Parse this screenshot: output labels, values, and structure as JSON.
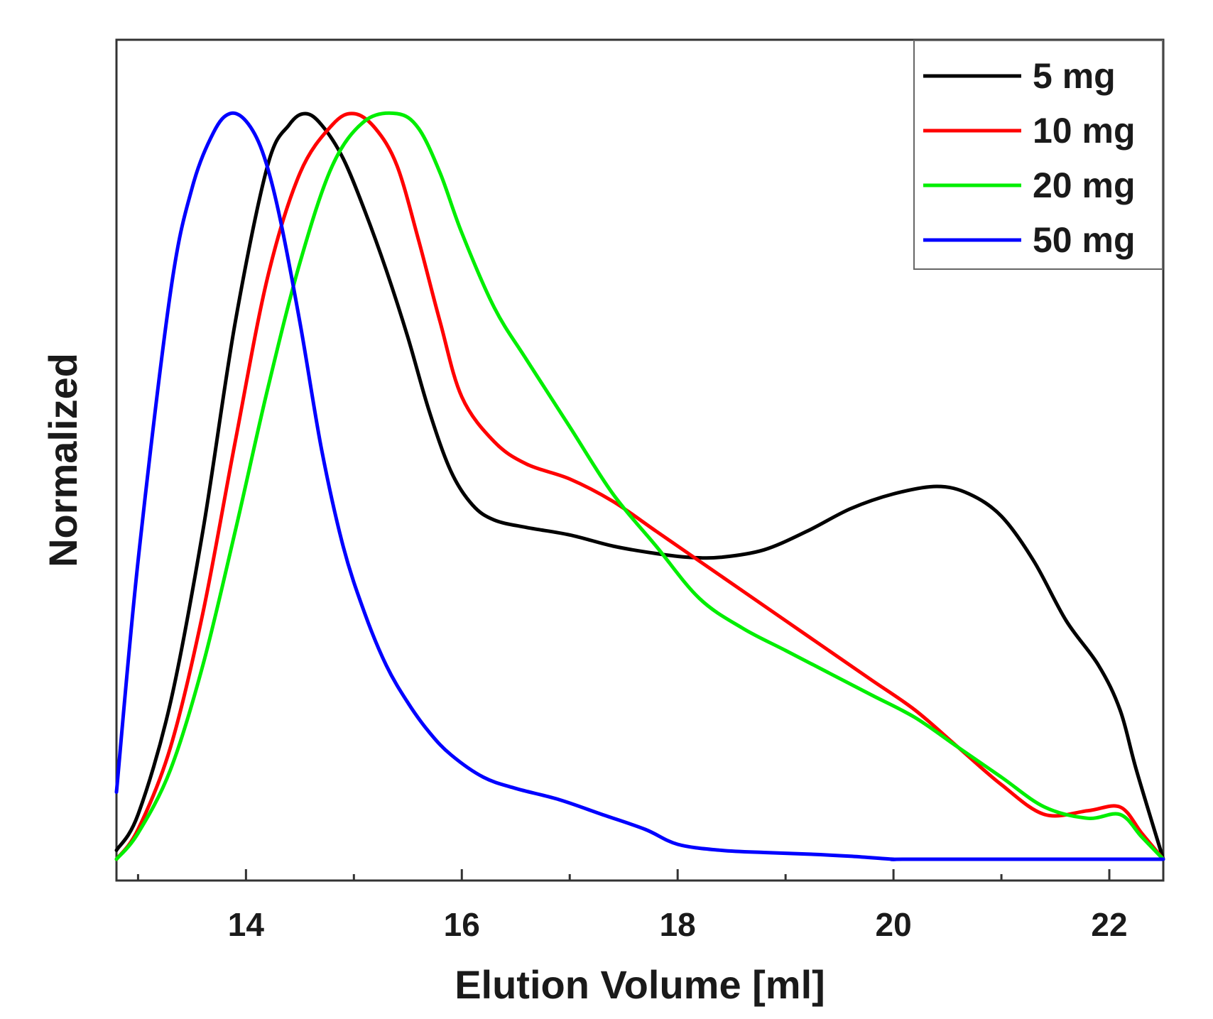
{
  "chart_data": {
    "type": "line",
    "title": "",
    "xlabel": "Elution Volume [ml]",
    "ylabel": "Normalized",
    "xlim": [
      12.8,
      22.5
    ],
    "ylim": [
      0,
      1.0
    ],
    "xticks_major": [
      14,
      16,
      18,
      20,
      22
    ],
    "xticks_minor": [
      13,
      15,
      17,
      19,
      21
    ],
    "grid": false,
    "legend_position": "top-right",
    "series": [
      {
        "name": "5 mg",
        "color": "#000000",
        "x": [
          12.8,
          13.0,
          13.3,
          13.6,
          13.9,
          14.2,
          14.4,
          14.55,
          14.7,
          14.9,
          15.1,
          15.3,
          15.5,
          15.7,
          15.9,
          16.1,
          16.3,
          16.6,
          17.0,
          17.4,
          17.8,
          18.1,
          18.4,
          18.8,
          19.2,
          19.6,
          20.0,
          20.4,
          20.7,
          21.0,
          21.3,
          21.6,
          21.9,
          22.1,
          22.25,
          22.5
        ],
        "y": [
          0.012,
          0.06,
          0.21,
          0.44,
          0.72,
          0.93,
          0.985,
          1.0,
          0.985,
          0.94,
          0.87,
          0.79,
          0.7,
          0.6,
          0.52,
          0.475,
          0.455,
          0.445,
          0.435,
          0.42,
          0.41,
          0.405,
          0.405,
          0.415,
          0.44,
          0.47,
          0.49,
          0.5,
          0.49,
          0.46,
          0.4,
          0.32,
          0.26,
          0.2,
          0.12,
          0.0
        ]
      },
      {
        "name": "10 mg",
        "color": "#ff0000",
        "x": [
          12.8,
          13.0,
          13.3,
          13.6,
          13.9,
          14.2,
          14.5,
          14.8,
          15.0,
          15.2,
          15.4,
          15.6,
          15.8,
          16.0,
          16.3,
          16.6,
          17.0,
          17.4,
          17.8,
          18.2,
          18.6,
          19.0,
          19.4,
          19.8,
          20.2,
          20.6,
          21.0,
          21.4,
          21.8,
          22.1,
          22.3,
          22.5
        ],
        "y": [
          0.0,
          0.04,
          0.15,
          0.33,
          0.56,
          0.78,
          0.92,
          0.985,
          1.0,
          0.98,
          0.93,
          0.83,
          0.72,
          0.62,
          0.56,
          0.53,
          0.51,
          0.48,
          0.44,
          0.4,
          0.36,
          0.32,
          0.28,
          0.24,
          0.2,
          0.15,
          0.1,
          0.06,
          0.065,
          0.07,
          0.035,
          0.0
        ]
      },
      {
        "name": "20 mg",
        "color": "#00ee00",
        "x": [
          12.8,
          13.0,
          13.3,
          13.6,
          13.9,
          14.2,
          14.5,
          14.8,
          15.1,
          15.4,
          15.6,
          15.8,
          16.0,
          16.3,
          16.6,
          17.0,
          17.4,
          17.8,
          18.2,
          18.6,
          19.0,
          19.4,
          19.8,
          20.2,
          20.6,
          21.0,
          21.4,
          21.8,
          22.1,
          22.3,
          22.5
        ],
        "y": [
          0.0,
          0.035,
          0.12,
          0.26,
          0.44,
          0.63,
          0.8,
          0.93,
          0.99,
          1.0,
          0.98,
          0.92,
          0.84,
          0.74,
          0.67,
          0.58,
          0.49,
          0.42,
          0.35,
          0.31,
          0.28,
          0.25,
          0.22,
          0.19,
          0.15,
          0.11,
          0.07,
          0.055,
          0.06,
          0.03,
          0.0
        ]
      },
      {
        "name": "50 mg",
        "color": "#0000ff",
        "x": [
          12.8,
          13.0,
          13.3,
          13.5,
          13.7,
          13.85,
          14.0,
          14.15,
          14.3,
          14.5,
          14.7,
          14.9,
          15.1,
          15.3,
          15.5,
          15.7,
          15.9,
          16.2,
          16.5,
          16.9,
          17.3,
          17.7,
          18.0,
          18.4,
          18.8,
          19.2,
          19.6,
          20.0,
          20.2,
          22.5
        ],
        "y": [
          0.09,
          0.4,
          0.76,
          0.9,
          0.975,
          1.0,
          0.99,
          0.95,
          0.87,
          0.72,
          0.55,
          0.42,
          0.33,
          0.26,
          0.21,
          0.17,
          0.14,
          0.11,
          0.095,
          0.08,
          0.06,
          0.04,
          0.02,
          0.012,
          0.009,
          0.007,
          0.004,
          0.0,
          0.0,
          0.0
        ]
      }
    ]
  }
}
